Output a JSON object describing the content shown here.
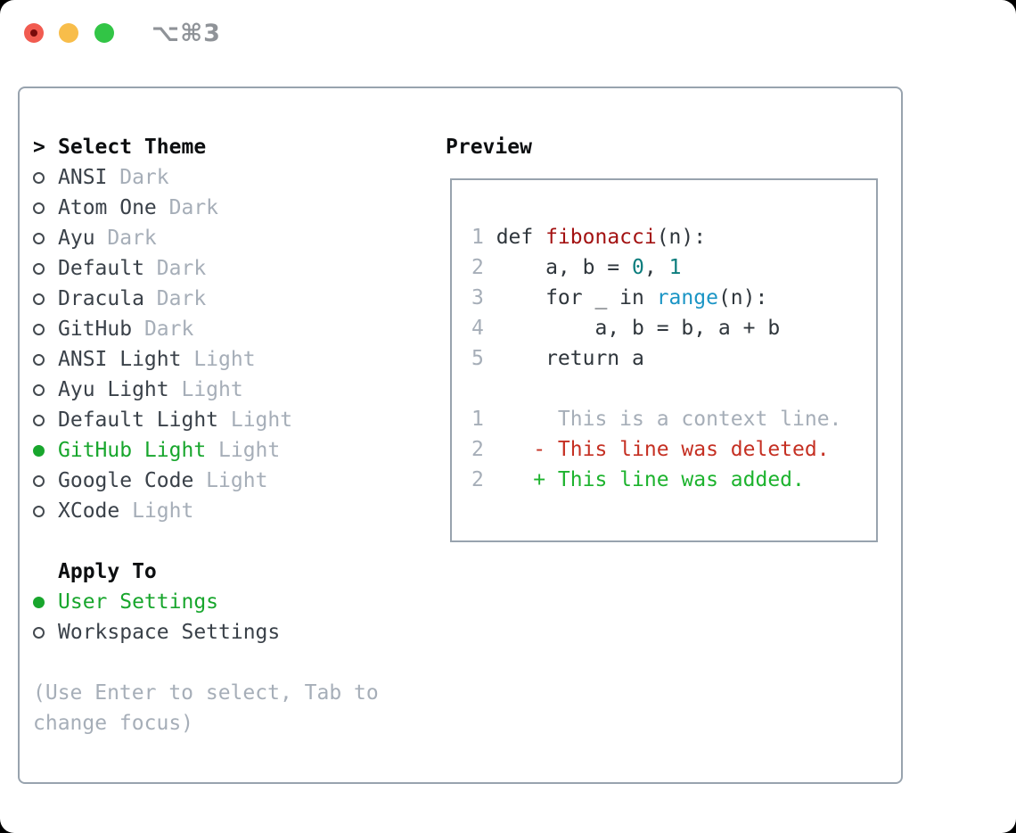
{
  "titlebar": {
    "shortcut": "⌥⌘3",
    "controls": [
      {
        "name": "close-button"
      },
      {
        "name": "minimize-button"
      },
      {
        "name": "zoom-button"
      }
    ]
  },
  "theme_picker": {
    "header_prefix": ">",
    "header": "Select Theme",
    "items": [
      {
        "label": "ANSI",
        "variant": "Dark",
        "selected": false
      },
      {
        "label": "Atom One",
        "variant": "Dark",
        "selected": false
      },
      {
        "label": "Ayu",
        "variant": "Dark",
        "selected": false
      },
      {
        "label": "Default",
        "variant": "Dark",
        "selected": false
      },
      {
        "label": "Dracula",
        "variant": "Dark",
        "selected": false
      },
      {
        "label": "GitHub",
        "variant": "Dark",
        "selected": false
      },
      {
        "label": "ANSI Light",
        "variant": "Light",
        "selected": false
      },
      {
        "label": "Ayu Light",
        "variant": "Light",
        "selected": false
      },
      {
        "label": "Default Light",
        "variant": "Light",
        "selected": false
      },
      {
        "label": "GitHub Light",
        "variant": "Light",
        "selected": true
      },
      {
        "label": "Google Code",
        "variant": "Light",
        "selected": false
      },
      {
        "label": "XCode",
        "variant": "Light",
        "selected": false
      }
    ],
    "apply_header": "Apply To",
    "apply_items": [
      {
        "label": "User Settings",
        "selected": true
      },
      {
        "label": "Workspace Settings",
        "selected": false
      }
    ],
    "hint_line1": "(Use Enter to select, Tab to",
    "hint_line2": "change focus)"
  },
  "preview": {
    "header": "Preview",
    "lines": [
      {
        "num": "1",
        "tokens": [
          {
            "t": "def ",
            "c": "plain"
          },
          {
            "t": "fibonacci",
            "c": "title"
          },
          {
            "t": "(n):",
            "c": "plain"
          }
        ]
      },
      {
        "num": "2",
        "tokens": [
          {
            "t": "    a, b = ",
            "c": "plain"
          },
          {
            "t": "0",
            "c": "number"
          },
          {
            "t": ", ",
            "c": "plain"
          },
          {
            "t": "1",
            "c": "number"
          }
        ]
      },
      {
        "num": "3",
        "tokens": [
          {
            "t": "    for _ in ",
            "c": "plain"
          },
          {
            "t": "range",
            "c": "builtin"
          },
          {
            "t": "(n):",
            "c": "plain"
          }
        ]
      },
      {
        "num": "4",
        "tokens": [
          {
            "t": "        a, b = b, a + b",
            "c": "plain"
          }
        ]
      },
      {
        "num": "5",
        "tokens": [
          {
            "t": "    return a",
            "c": "plain"
          }
        ]
      },
      {
        "num": "",
        "tokens": []
      },
      {
        "num": "1",
        "tokens": [
          {
            "t": "     This is a context line.",
            "c": "context"
          }
        ]
      },
      {
        "num": "2",
        "tokens": [
          {
            "t": "   - This line was deleted.",
            "c": "deleted"
          }
        ]
      },
      {
        "num": "2",
        "tokens": [
          {
            "t": "   + This line was added.",
            "c": "added"
          }
        ]
      }
    ]
  },
  "colors": {
    "accent-green": "#18a62d",
    "added-green": "#1db32e",
    "deleted-red": "#c53023",
    "function-red": "#a31212",
    "builtin-blue": "#1b95c5",
    "number-teal": "#0b7d7d",
    "code-text": "#2f363c",
    "item-text": "#3a4149",
    "muted-gray": "#a6aeb8",
    "border-gray": "#98a3ae",
    "header-black": "#0c0e10",
    "traffic-red": "#f15b50",
    "traffic-red-dot": "#780b0b",
    "traffic-yellow": "#f8bd4a",
    "traffic-green": "#32c546",
    "shortcut-gray": "#8f9398"
  }
}
